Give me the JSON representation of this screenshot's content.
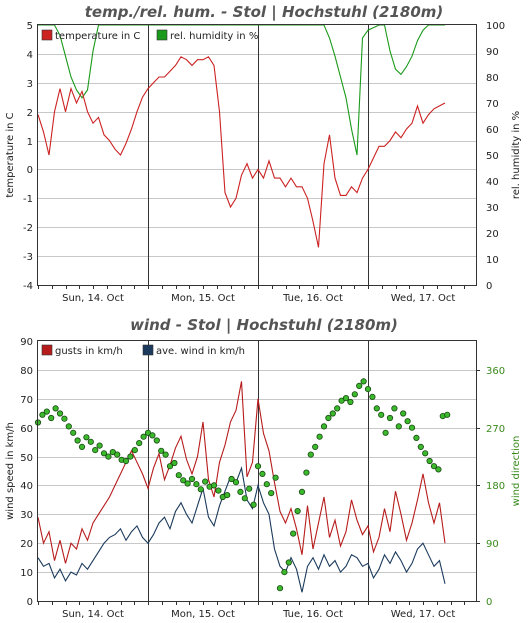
{
  "chart_data": [
    {
      "type": "line",
      "title": "temp./rel. hum. - Stol | Hochstuhl (2180m)",
      "ylabel": "temperature in C",
      "y2label": "rel. humidity in %",
      "ylim": [
        -4,
        5
      ],
      "y2lim": [
        0,
        100
      ],
      "yticks": [
        "5",
        "4",
        "3",
        "2",
        "1",
        "0",
        "-1",
        "-2",
        "-3",
        "-4"
      ],
      "y2ticks": [
        "100",
        "90",
        "80",
        "70",
        "60",
        "50",
        "40",
        "30",
        "20",
        "10",
        "0"
      ],
      "day_labels": [
        "Sun, 14. Oct",
        "Mon, 15. Oct",
        "Tue, 16. Oct",
        "Wed, 17. Oct"
      ],
      "grid": true,
      "legend_position": "top-left",
      "series": [
        {
          "name": "temperature in C",
          "color": "#cc2222",
          "axis": "left",
          "x": [
            0,
            0.05,
            0.1,
            0.15,
            0.2,
            0.25,
            0.3,
            0.35,
            0.4,
            0.45,
            0.5,
            0.55,
            0.6,
            0.65,
            0.7,
            0.75,
            0.8,
            0.85,
            0.9,
            0.95,
            1.0,
            1.05,
            1.1,
            1.15,
            1.2,
            1.25,
            1.3,
            1.35,
            1.4,
            1.45,
            1.5,
            1.55,
            1.6,
            1.65,
            1.7,
            1.75,
            1.8,
            1.85,
            1.9,
            1.95,
            2.0,
            2.05,
            2.1,
            2.15,
            2.2,
            2.25,
            2.3,
            2.35,
            2.4,
            2.45,
            2.5,
            2.55,
            2.6,
            2.65,
            2.7,
            2.75,
            2.8,
            2.85,
            2.9,
            2.95,
            3.0,
            3.05,
            3.1,
            3.15,
            3.2,
            3.25,
            3.3,
            3.35,
            3.4,
            3.45,
            3.5,
            3.55,
            3.6,
            3.65,
            3.7
          ],
          "values": [
            1.9,
            1.3,
            0.5,
            2.0,
            2.8,
            2.0,
            2.8,
            2.3,
            2.7,
            2.0,
            1.6,
            1.8,
            1.2,
            1.0,
            0.7,
            0.5,
            0.9,
            1.4,
            2.0,
            2.5,
            2.8,
            3.0,
            3.2,
            3.2,
            3.4,
            3.6,
            3.9,
            3.8,
            3.6,
            3.8,
            3.8,
            3.9,
            3.6,
            2.0,
            -0.8,
            -1.3,
            -1.0,
            -0.2,
            0.2,
            -0.3,
            0.0,
            -0.3,
            0.3,
            -0.3,
            -0.3,
            -0.6,
            -0.3,
            -0.6,
            -0.6,
            -1.0,
            -1.8,
            -2.7,
            0.2,
            1.2,
            -0.3,
            -0.9,
            -0.9,
            -0.6,
            -0.8,
            -0.3,
            0.0,
            0.4,
            0.8,
            0.8,
            1.0,
            1.3,
            1.1,
            1.4,
            1.6,
            2.2,
            1.6,
            1.9,
            2.1,
            2.2,
            2.3
          ]
        },
        {
          "name": "rel. humidity in %",
          "color": "#1a9a1a",
          "axis": "right",
          "x": [
            0,
            0.05,
            0.1,
            0.15,
            0.2,
            0.25,
            0.3,
            0.35,
            0.4,
            0.45,
            0.5,
            0.55,
            0.6,
            0.65,
            0.7,
            0.75,
            0.8,
            0.85,
            0.9,
            0.95,
            1.0,
            1.05,
            1.1,
            1.15,
            1.2,
            1.25,
            1.3,
            1.35,
            1.4,
            1.45,
            1.5,
            1.55,
            1.6,
            1.65,
            1.7,
            1.75,
            1.8,
            1.85,
            1.9,
            1.95,
            2.0,
            2.05,
            2.1,
            2.15,
            2.2,
            2.25,
            2.3,
            2.35,
            2.4,
            2.45,
            2.5,
            2.55,
            2.6,
            2.65,
            2.7,
            2.75,
            2.8,
            2.85,
            2.9,
            2.95,
            3.0,
            3.05,
            3.1,
            3.15,
            3.2,
            3.25,
            3.3,
            3.35,
            3.4,
            3.45,
            3.5,
            3.55,
            3.6,
            3.65,
            3.7
          ],
          "values": [
            100,
            100,
            100,
            100,
            96,
            88,
            80,
            75,
            72,
            75,
            90,
            100,
            100,
            100,
            100,
            100,
            100,
            100,
            100,
            100,
            100,
            100,
            100,
            100,
            100,
            100,
            100,
            100,
            100,
            100,
            100,
            100,
            100,
            100,
            100,
            100,
            100,
            100,
            100,
            100,
            100,
            100,
            100,
            100,
            100,
            100,
            100,
            100,
            100,
            100,
            100,
            100,
            100,
            95,
            88,
            80,
            72,
            60,
            50,
            95,
            98,
            99,
            100,
            100,
            90,
            83,
            81,
            84,
            88,
            94,
            98,
            100,
            100,
            100,
            100
          ]
        }
      ]
    },
    {
      "type": "line",
      "title": "wind - Stol | Hochstuhl (2180m)",
      "ylabel": "wind speed in km/h",
      "y2label": "wind direction",
      "ylim": [
        0,
        90
      ],
      "y2lim": [
        0,
        405
      ],
      "yticks": [
        "90",
        "80",
        "70",
        "60",
        "50",
        "40",
        "30",
        "20",
        "10",
        "0"
      ],
      "y2ticks": [
        "360",
        "270",
        "180",
        "90",
        "0"
      ],
      "day_labels": [
        "Sun, 14. Oct",
        "Mon, 15. Oct",
        "Tue, 16. Oct",
        "Wed, 17. Oct"
      ],
      "grid": true,
      "legend_position": "top-left",
      "series": [
        {
          "name": "gusts in km/h",
          "color": "#b71c1c",
          "axis": "left",
          "x": [
            0,
            0.05,
            0.1,
            0.15,
            0.2,
            0.25,
            0.3,
            0.35,
            0.4,
            0.45,
            0.5,
            0.55,
            0.6,
            0.65,
            0.7,
            0.75,
            0.8,
            0.85,
            0.9,
            0.95,
            1.0,
            1.05,
            1.1,
            1.15,
            1.2,
            1.25,
            1.3,
            1.35,
            1.4,
            1.45,
            1.5,
            1.55,
            1.6,
            1.65,
            1.7,
            1.75,
            1.8,
            1.85,
            1.9,
            1.95,
            2.0,
            2.05,
            2.1,
            2.15,
            2.2,
            2.25,
            2.3,
            2.35,
            2.4,
            2.45,
            2.5,
            2.55,
            2.6,
            2.65,
            2.7,
            2.75,
            2.8,
            2.85,
            2.9,
            2.95,
            3.0,
            3.05,
            3.1,
            3.15,
            3.2,
            3.25,
            3.3,
            3.35,
            3.4,
            3.45,
            3.5,
            3.55,
            3.6,
            3.65,
            3.7
          ],
          "values": [
            29,
            20,
            24,
            14,
            21,
            13,
            20,
            18,
            25,
            21,
            27,
            30,
            33,
            36,
            40,
            44,
            48,
            52,
            48,
            44,
            39,
            46,
            51,
            42,
            47,
            53,
            57,
            49,
            44,
            50,
            62,
            42,
            36,
            48,
            54,
            62,
            66,
            76,
            43,
            48,
            70,
            58,
            52,
            41,
            31,
            27,
            32,
            25,
            16,
            33,
            18,
            27,
            36,
            22,
            28,
            19,
            24,
            35,
            28,
            23,
            26,
            17,
            22,
            32,
            24,
            38,
            30,
            21,
            27,
            35,
            44,
            34,
            27,
            34,
            20
          ]
        },
        {
          "name": "ave. wind in km/h",
          "color": "#1b3a5c",
          "axis": "left",
          "x": [
            0,
            0.05,
            0.1,
            0.15,
            0.2,
            0.25,
            0.3,
            0.35,
            0.4,
            0.45,
            0.5,
            0.55,
            0.6,
            0.65,
            0.7,
            0.75,
            0.8,
            0.85,
            0.9,
            0.95,
            1.0,
            1.05,
            1.1,
            1.15,
            1.2,
            1.25,
            1.3,
            1.35,
            1.4,
            1.45,
            1.5,
            1.55,
            1.6,
            1.65,
            1.7,
            1.75,
            1.8,
            1.85,
            1.9,
            1.95,
            2.0,
            2.05,
            2.1,
            2.15,
            2.2,
            2.25,
            2.3,
            2.35,
            2.4,
            2.45,
            2.5,
            2.55,
            2.6,
            2.65,
            2.7,
            2.75,
            2.8,
            2.85,
            2.9,
            2.95,
            3.0,
            3.05,
            3.1,
            3.15,
            3.2,
            3.25,
            3.3,
            3.35,
            3.4,
            3.45,
            3.5,
            3.55,
            3.6,
            3.65,
            3.7
          ],
          "values": [
            15,
            12,
            13,
            8,
            11,
            7,
            10,
            9,
            13,
            11,
            14,
            17,
            20,
            22,
            23,
            25,
            21,
            24,
            26,
            22,
            20,
            23,
            27,
            29,
            25,
            31,
            34,
            30,
            27,
            33,
            39,
            29,
            26,
            33,
            38,
            43,
            41,
            46,
            35,
            32,
            40,
            34,
            30,
            18,
            12,
            10,
            15,
            11,
            3,
            12,
            15,
            11,
            16,
            12,
            14,
            10,
            12,
            16,
            15,
            12,
            13,
            8,
            11,
            16,
            13,
            17,
            14,
            10,
            13,
            18,
            20,
            16,
            12,
            14,
            6
          ]
        },
        {
          "name": "wind direction",
          "color": "#2e9e1e",
          "axis": "right",
          "type": "scatter",
          "x": [
            0,
            0.04,
            0.08,
            0.12,
            0.16,
            0.2,
            0.24,
            0.28,
            0.32,
            0.36,
            0.4,
            0.44,
            0.48,
            0.52,
            0.56,
            0.6,
            0.64,
            0.68,
            0.72,
            0.76,
            0.8,
            0.84,
            0.88,
            0.92,
            0.96,
            1.0,
            1.04,
            1.08,
            1.12,
            1.16,
            1.2,
            1.24,
            1.28,
            1.32,
            1.36,
            1.4,
            1.44,
            1.48,
            1.52,
            1.56,
            1.6,
            1.64,
            1.68,
            1.72,
            1.76,
            1.8,
            1.84,
            1.88,
            1.92,
            1.96,
            2.0,
            2.04,
            2.08,
            2.12,
            2.16,
            2.2,
            2.24,
            2.28,
            2.32,
            2.36,
            2.4,
            2.44,
            2.48,
            2.52,
            2.56,
            2.6,
            2.64,
            2.68,
            2.72,
            2.76,
            2.8,
            2.84,
            2.88,
            2.92,
            2.96,
            3.0,
            3.04,
            3.08,
            3.12,
            3.16,
            3.2,
            3.24,
            3.28,
            3.32,
            3.36,
            3.4,
            3.44,
            3.48,
            3.52,
            3.56,
            3.6,
            3.64,
            3.68,
            3.72
          ],
          "values": [
            278,
            290,
            295,
            285,
            300,
            292,
            284,
            272,
            262,
            250,
            240,
            255,
            248,
            235,
            242,
            230,
            225,
            232,
            228,
            220,
            218,
            225,
            235,
            246,
            256,
            262,
            258,
            250,
            234,
            228,
            210,
            215,
            196,
            188,
            183,
            190,
            182,
            174,
            186,
            178,
            180,
            172,
            162,
            165,
            190,
            185,
            170,
            160,
            175,
            150,
            210,
            198,
            182,
            168,
            192,
            20,
            45,
            60,
            105,
            140,
            170,
            200,
            228,
            240,
            256,
            272,
            285,
            292,
            300,
            312,
            316,
            310,
            322,
            335,
            342,
            330,
            318,
            300,
            290,
            262,
            285,
            300,
            272,
            292,
            280,
            270,
            254,
            240,
            230,
            218,
            210,
            205,
            288,
            290
          ]
        }
      ]
    }
  ]
}
